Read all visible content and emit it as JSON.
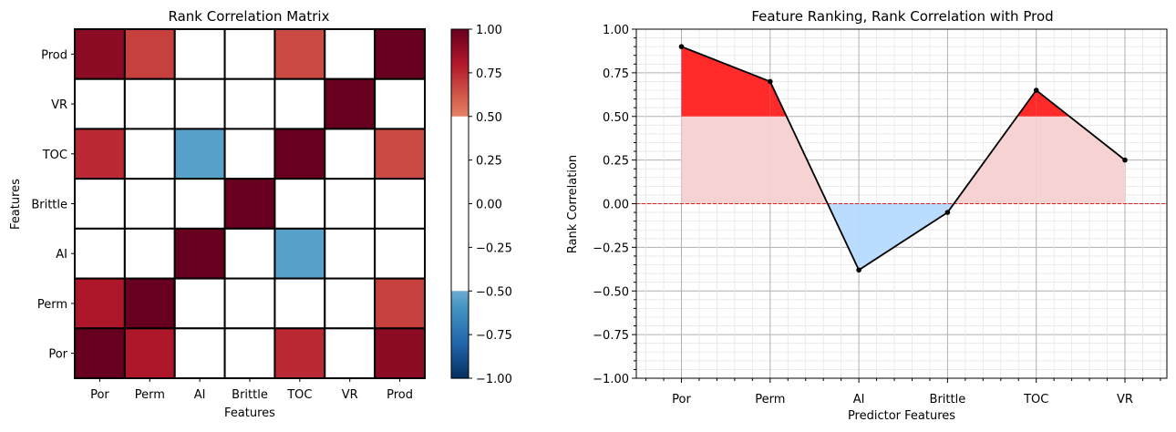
{
  "chart_data": [
    {
      "type": "heatmap",
      "title": "Rank Correlation Matrix",
      "xlabel": "Features",
      "ylabel": "Features",
      "x_categories": [
        "Por",
        "Perm",
        "AI",
        "Brittle",
        "TOC",
        "VR",
        "Prod"
      ],
      "y_categories_top_to_bottom": [
        "Prod",
        "VR",
        "TOC",
        "Brittle",
        "AI",
        "Perm",
        "Por"
      ],
      "values_top_to_bottom": [
        [
          0.9,
          0.69,
          null,
          null,
          0.66,
          null,
          1.0
        ],
        [
          null,
          null,
          null,
          null,
          null,
          1.0,
          null
        ],
        [
          0.75,
          null,
          -0.55,
          null,
          1.0,
          null,
          0.66
        ],
        [
          null,
          null,
          null,
          1.0,
          null,
          null,
          null
        ],
        [
          null,
          null,
          1.0,
          null,
          -0.55,
          null,
          null
        ],
        [
          0.81,
          1.0,
          null,
          null,
          null,
          null,
          0.69
        ],
        [
          1.0,
          0.81,
          null,
          null,
          0.75,
          null,
          0.9
        ]
      ],
      "masked_range": [
        -0.5,
        0.5
      ],
      "colorbar": {
        "range": [
          -1.0,
          1.0
        ],
        "ticks": [
          1.0,
          0.75,
          0.5,
          0.25,
          0.0,
          -0.25,
          -0.5,
          -0.75,
          -1.0
        ],
        "tick_labels": [
          "1.00",
          "0.75",
          "0.50",
          "0.25",
          "0.00",
          "−0.25",
          "−0.50",
          "−0.75",
          "−1.00"
        ]
      },
      "colormap": "RdBu_r"
    },
    {
      "type": "line",
      "title": "Feature Ranking, Rank Correlation with Prod",
      "xlabel": "Predictor Features",
      "ylabel": "Rank Correlation",
      "categories": [
        "Por",
        "Perm",
        "AI",
        "Brittle",
        "TOC",
        "VR"
      ],
      "values": [
        0.9,
        0.7,
        -0.38,
        -0.05,
        0.65,
        0.25
      ],
      "ylim": [
        -1.0,
        1.0
      ],
      "yticks": [
        1.0,
        0.75,
        0.5,
        0.25,
        0.0,
        -0.25,
        -0.5,
        -0.75,
        -1.0
      ],
      "ytick_labels": [
        "1.00",
        "0.75",
        "0.50",
        "0.25",
        "0.00",
        "−0.25",
        "−0.50",
        "−0.75",
        "−1.00"
      ],
      "threshold": 0.5,
      "zero_line": 0.0,
      "grid": true,
      "colors": {
        "line": "#000000",
        "above_threshold": "#ff2a2a",
        "positive_fill": "#f6d2d2",
        "negative_fill": "#b9dcff",
        "zero_line": "#d62728"
      }
    }
  ]
}
